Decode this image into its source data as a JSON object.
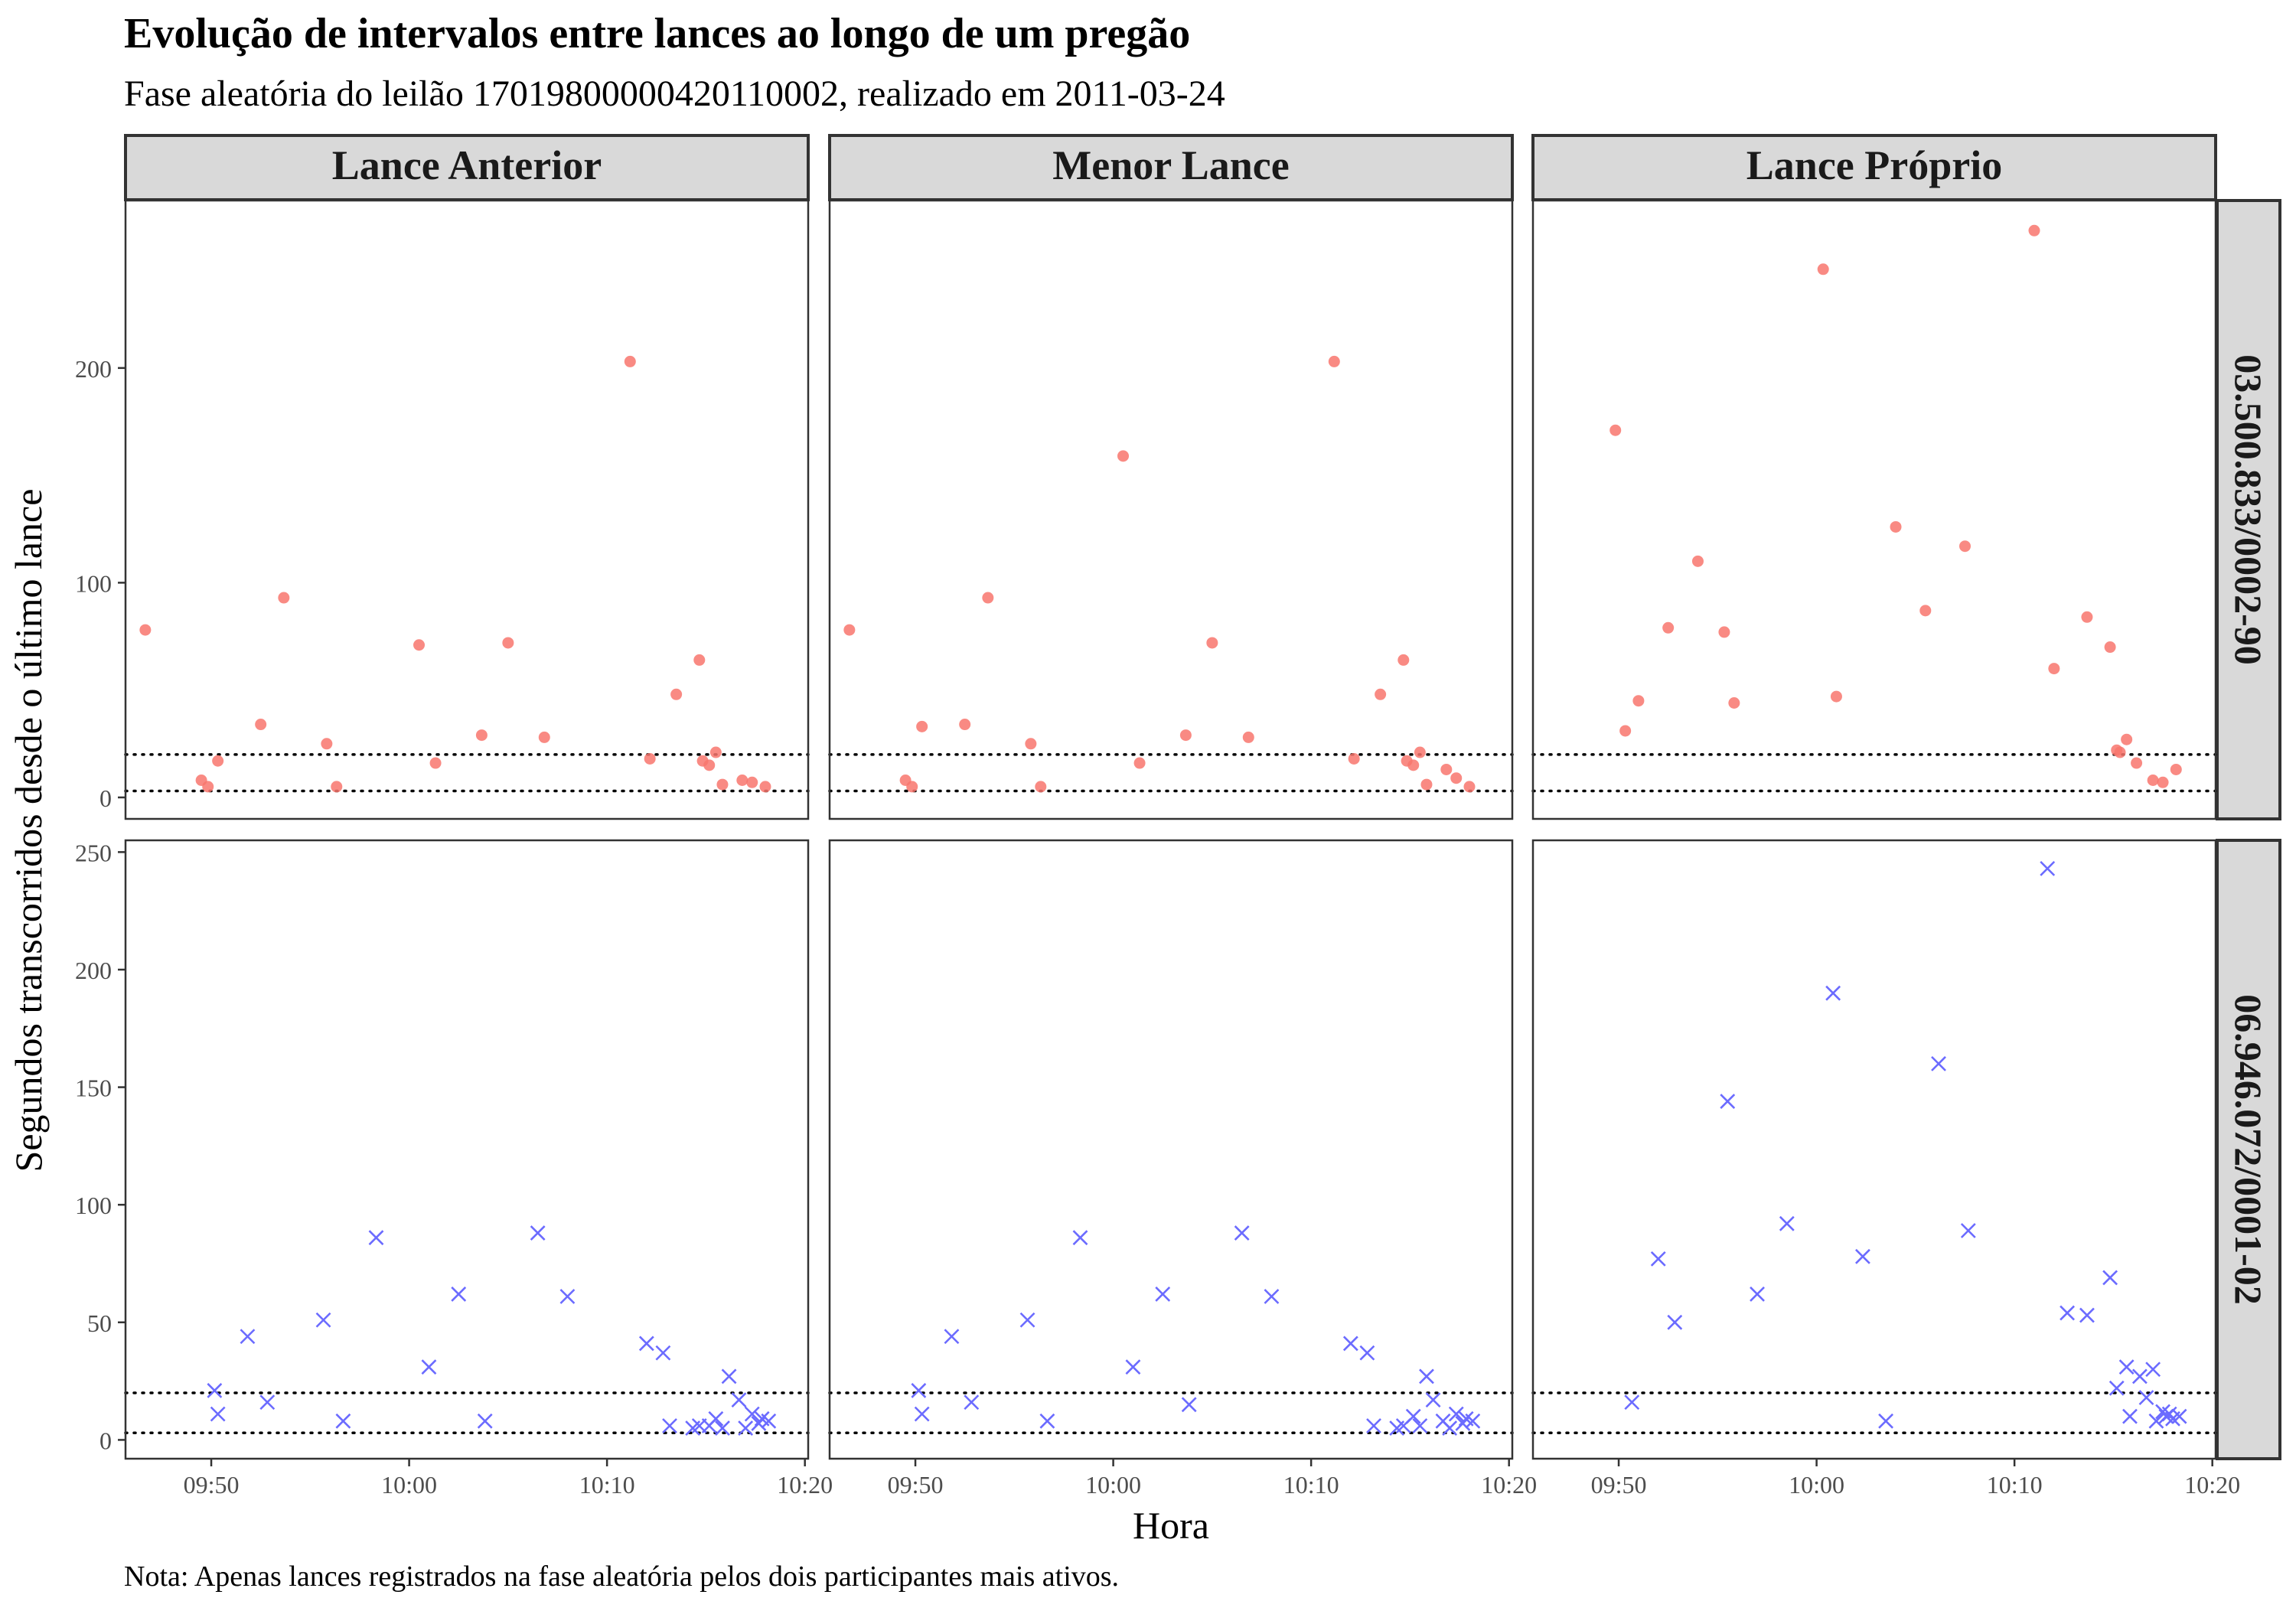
{
  "chart_data": {
    "type": "scatter",
    "title": "Evolução de intervalos entre lances ao longo de um pregão",
    "subtitle": "Fase aleatória do leilão 17019800000420110002, realizado em 2011-03-24",
    "xlabel": "Hora",
    "ylabel": "Segundos transcorridos desde o último lance",
    "caption": "Nota: Apenas lances registrados na fase aleatória pelos dois participantes mais ativos.",
    "x_ticks": [
      "09:50",
      "10:00",
      "10:10",
      "10:20"
    ],
    "x_range": [
      "09:45:40",
      "10:20:10"
    ],
    "reference_lines": [
      3,
      20
    ],
    "columns": [
      "Lance Anterior",
      "Menor Lance",
      "Lance Próprio"
    ],
    "rows": [
      {
        "label": "03.500.833/0002-90",
        "color": "#f8766d",
        "shape": "circle",
        "ylim": [
          -10,
          278
        ],
        "y_ticks": [
          0,
          100,
          200
        ],
        "panels": {
          "Lance Anterior": [
            [
              "09:46:40",
              78
            ],
            [
              "09:49:30",
              8
            ],
            [
              "09:49:50",
              5
            ],
            [
              "09:50:20",
              17
            ],
            [
              "09:52:30",
              34
            ],
            [
              "09:53:40",
              93
            ],
            [
              "09:55:50",
              25
            ],
            [
              "09:56:20",
              5
            ],
            [
              "10:00:30",
              71
            ],
            [
              "10:01:20",
              16
            ],
            [
              "10:03:40",
              29
            ],
            [
              "10:05:00",
              72
            ],
            [
              "10:06:50",
              28
            ],
            [
              "10:11:10",
              203
            ],
            [
              "10:12:10",
              18
            ],
            [
              "10:13:30",
              48
            ],
            [
              "10:14:40",
              64
            ],
            [
              "10:14:50",
              17
            ],
            [
              "10:15:10",
              15
            ],
            [
              "10:15:30",
              21
            ],
            [
              "10:15:50",
              6
            ],
            [
              "10:16:50",
              8
            ],
            [
              "10:17:20",
              7
            ],
            [
              "10:18:00",
              5
            ]
          ],
          "Menor Lance": [
            [
              "09:46:40",
              78
            ],
            [
              "09:49:30",
              8
            ],
            [
              "09:49:50",
              5
            ],
            [
              "09:50:20",
              33
            ],
            [
              "09:52:30",
              34
            ],
            [
              "09:53:40",
              93
            ],
            [
              "09:55:50",
              25
            ],
            [
              "09:56:20",
              5
            ],
            [
              "10:00:30",
              159
            ],
            [
              "10:01:20",
              16
            ],
            [
              "10:03:40",
              29
            ],
            [
              "10:05:00",
              72
            ],
            [
              "10:06:50",
              28
            ],
            [
              "10:11:10",
              203
            ],
            [
              "10:12:10",
              18
            ],
            [
              "10:13:30",
              48
            ],
            [
              "10:14:40",
              64
            ],
            [
              "10:14:50",
              17
            ],
            [
              "10:15:10",
              15
            ],
            [
              "10:15:30",
              21
            ],
            [
              "10:15:50",
              6
            ],
            [
              "10:16:50",
              13
            ],
            [
              "10:17:20",
              9
            ],
            [
              "10:18:00",
              5
            ]
          ],
          "Lance Próprio": [
            [
              "09:49:50",
              171
            ],
            [
              "09:50:20",
              31
            ],
            [
              "09:51:00",
              45
            ],
            [
              "09:52:30",
              79
            ],
            [
              "09:54:00",
              110
            ],
            [
              "09:55:20",
              77
            ],
            [
              "09:55:50",
              44
            ],
            [
              "10:00:20",
              246
            ],
            [
              "10:01:00",
              47
            ],
            [
              "10:04:00",
              126
            ],
            [
              "10:05:30",
              87
            ],
            [
              "10:07:30",
              117
            ],
            [
              "10:11:00",
              264
            ],
            [
              "10:12:00",
              60
            ],
            [
              "10:13:40",
              84
            ],
            [
              "10:14:50",
              70
            ],
            [
              "10:15:10",
              22
            ],
            [
              "10:15:20",
              21
            ],
            [
              "10:15:40",
              27
            ],
            [
              "10:16:10",
              16
            ],
            [
              "10:17:00",
              8
            ],
            [
              "10:17:30",
              7
            ],
            [
              "10:18:10",
              13
            ]
          ]
        }
      },
      {
        "label": "06.946.072/0001-02",
        "color": "#6b6bff",
        "shape": "cross",
        "ylim": [
          -8,
          255
        ],
        "y_ticks": [
          0,
          50,
          100,
          150,
          200,
          250
        ],
        "panels": {
          "Lance Anterior": [
            [
              "09:50:10",
              21
            ],
            [
              "09:50:20",
              11
            ],
            [
              "09:51:50",
              44
            ],
            [
              "09:52:50",
              16
            ],
            [
              "09:55:40",
              51
            ],
            [
              "09:56:40",
              8
            ],
            [
              "09:58:20",
              86
            ],
            [
              "10:01:00",
              31
            ],
            [
              "10:02:30",
              62
            ],
            [
              "10:03:50",
              8
            ],
            [
              "10:06:30",
              88
            ],
            [
              "10:08:00",
              61
            ],
            [
              "10:12:00",
              41
            ],
            [
              "10:12:50",
              37
            ],
            [
              "10:13:10",
              6
            ],
            [
              "10:14:20",
              5
            ],
            [
              "10:14:40",
              6
            ],
            [
              "10:15:10",
              6
            ],
            [
              "10:15:30",
              9
            ],
            [
              "10:15:50",
              5
            ],
            [
              "10:16:10",
              27
            ],
            [
              "10:16:40",
              17
            ],
            [
              "10:17:00",
              5
            ],
            [
              "10:17:20",
              11
            ],
            [
              "10:17:40",
              7
            ],
            [
              "10:17:50",
              9
            ],
            [
              "10:18:10",
              8
            ]
          ],
          "Menor Lance": [
            [
              "09:50:10",
              21
            ],
            [
              "09:50:20",
              11
            ],
            [
              "09:51:50",
              44
            ],
            [
              "09:52:50",
              16
            ],
            [
              "09:55:40",
              51
            ],
            [
              "09:56:40",
              8
            ],
            [
              "09:58:20",
              86
            ],
            [
              "10:01:00",
              31
            ],
            [
              "10:02:30",
              62
            ],
            [
              "10:03:50",
              15
            ],
            [
              "10:06:30",
              88
            ],
            [
              "10:08:00",
              61
            ],
            [
              "10:12:00",
              41
            ],
            [
              "10:12:50",
              37
            ],
            [
              "10:13:10",
              6
            ],
            [
              "10:14:20",
              5
            ],
            [
              "10:14:40",
              6
            ],
            [
              "10:15:10",
              10
            ],
            [
              "10:15:30",
              6
            ],
            [
              "10:15:50",
              27
            ],
            [
              "10:16:10",
              17
            ],
            [
              "10:16:40",
              8
            ],
            [
              "10:17:00",
              5
            ],
            [
              "10:17:20",
              11
            ],
            [
              "10:17:40",
              7
            ],
            [
              "10:17:50",
              9
            ],
            [
              "10:18:10",
              8
            ]
          ],
          "Lance Próprio": [
            [
              "09:50:40",
              16
            ],
            [
              "09:52:00",
              77
            ],
            [
              "09:52:50",
              50
            ],
            [
              "09:55:30",
              144
            ],
            [
              "09:57:00",
              62
            ],
            [
              "09:58:30",
              92
            ],
            [
              "10:00:50",
              190
            ],
            [
              "10:02:20",
              78
            ],
            [
              "10:03:30",
              8
            ],
            [
              "10:06:10",
              160
            ],
            [
              "10:07:40",
              89
            ],
            [
              "10:11:40",
              243
            ],
            [
              "10:12:40",
              54
            ],
            [
              "10:13:40",
              53
            ],
            [
              "10:14:50",
              69
            ],
            [
              "10:15:10",
              22
            ],
            [
              "10:15:40",
              31
            ],
            [
              "10:15:50",
              10
            ],
            [
              "10:16:20",
              27
            ],
            [
              "10:16:40",
              18
            ],
            [
              "10:17:00",
              30
            ],
            [
              "10:17:10",
              8
            ],
            [
              "10:17:30",
              12
            ],
            [
              "10:17:40",
              10
            ],
            [
              "10:17:50",
              11
            ],
            [
              "10:18:00",
              9
            ],
            [
              "10:18:20",
              10
            ]
          ]
        }
      }
    ]
  }
}
